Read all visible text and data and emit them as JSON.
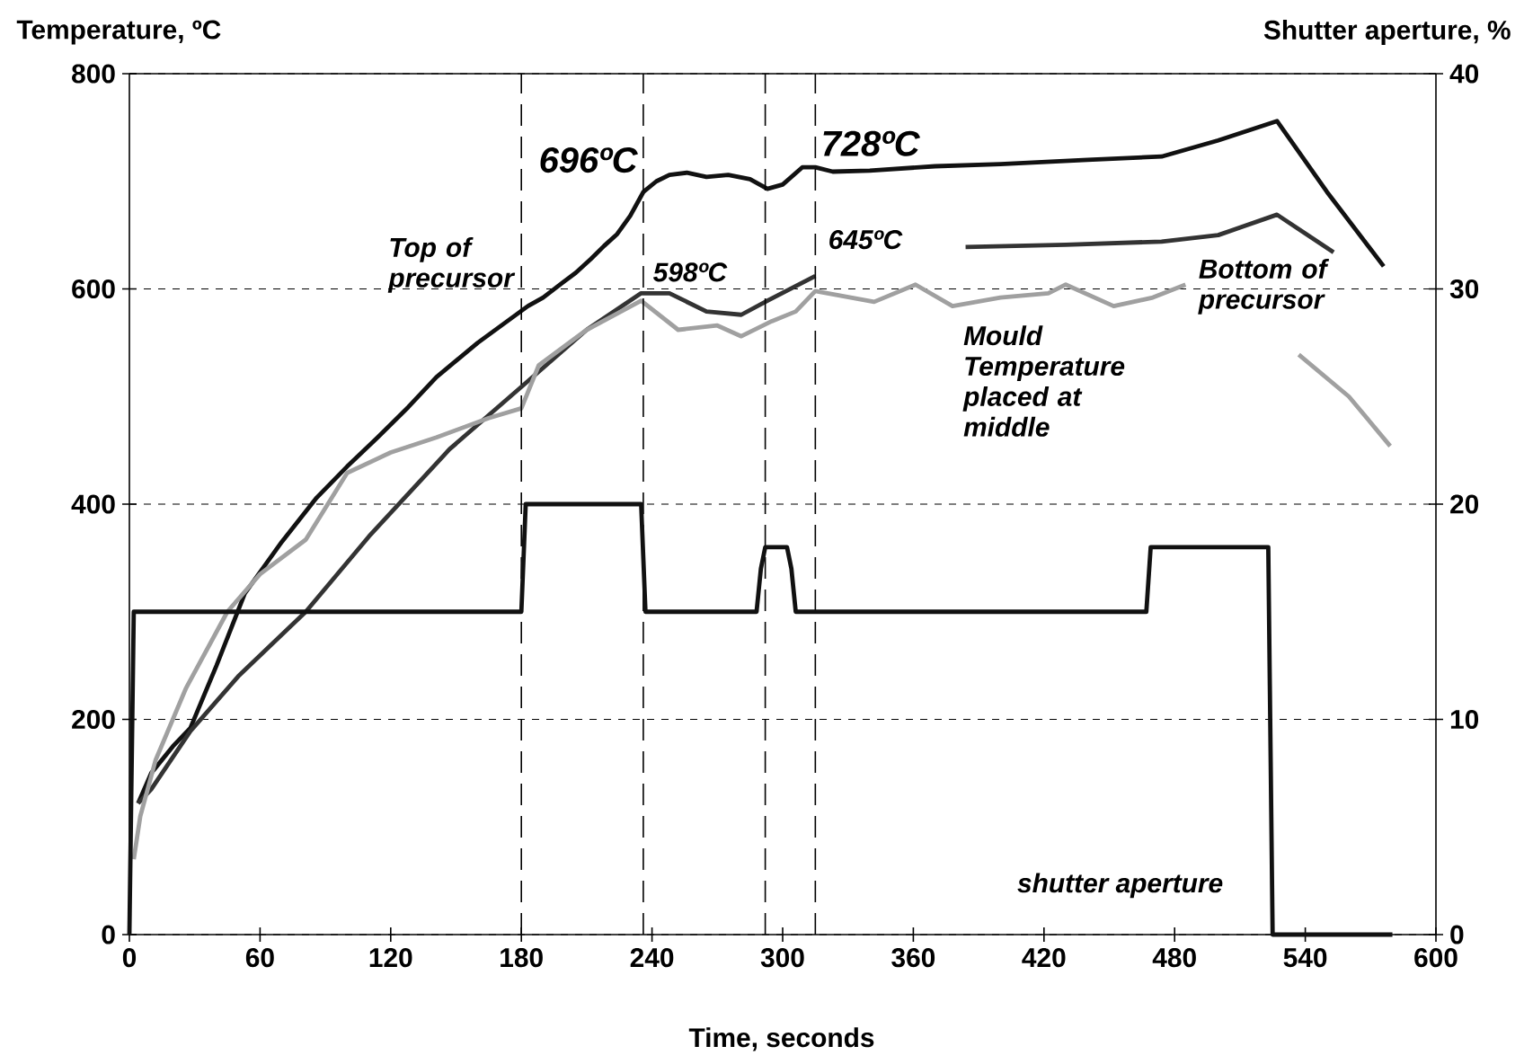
{
  "chart_data": {
    "type": "line",
    "xlabel": "Time, seconds",
    "ylabel": "Temperature, ºC",
    "y2label": "Shutter aperture, %",
    "xlim": [
      0,
      600
    ],
    "xticks": [
      0,
      60,
      120,
      180,
      240,
      300,
      360,
      420,
      480,
      540,
      600
    ],
    "ylim": [
      0,
      800
    ],
    "yticks": [
      0,
      200,
      400,
      600,
      800
    ],
    "y2lim": [
      0,
      40
    ],
    "y2ticks": [
      0,
      10,
      20,
      30,
      40
    ],
    "grid": "y",
    "series": [
      {
        "name": "Top of precursor",
        "color": "#111111",
        "x": [
          4,
          10,
          20,
          28,
          40,
          53,
          70,
          86,
          100,
          114,
          128,
          141,
          160,
          183,
          190,
          199,
          205,
          212,
          218,
          224,
          230,
          236,
          242,
          248,
          256,
          265,
          275,
          285,
          293,
          300,
          309,
          315,
          323,
          340,
          370,
          400,
          440,
          474,
          500,
          527,
          550,
          576
        ],
        "values": [
          122,
          150,
          175,
          192,
          250,
          317,
          365,
          406,
          435,
          462,
          490,
          518,
          550,
          584,
          592,
          606,
          615,
          628,
          640,
          651,
          668,
          690,
          700,
          706,
          708,
          704,
          706,
          702,
          693,
          697,
          713,
          713,
          709,
          710,
          714,
          716,
          720,
          723,
          738,
          756,
          690,
          621
        ]
      },
      {
        "name": "Bottom of precursor",
        "color": "#333333",
        "x": [
          4,
          10,
          28,
          50,
          81,
          110,
          147,
          180,
          210,
          235,
          248,
          265,
          281,
          293,
          315,
          350,
          384,
          430,
          474,
          500,
          527,
          553
        ],
        "values": [
          122,
          135,
          189,
          240,
          300,
          370,
          451,
          509,
          562,
          596,
          596,
          579,
          576,
          589,
          612,
          null,
          639,
          641,
          644,
          650,
          669,
          634
        ]
      },
      {
        "name": "Mould Temperature placed at middle",
        "color": "#a0a0a0",
        "x": [
          2,
          5,
          12,
          26,
          45,
          60,
          81,
          100,
          120,
          141,
          165,
          180,
          188,
          210,
          235,
          252,
          270,
          281,
          295,
          306,
          315,
          342,
          361,
          378,
          400,
          422,
          430,
          452,
          470,
          485,
          510,
          537,
          560,
          579
        ],
        "values": [
          70,
          110,
          162,
          229,
          300,
          335,
          367,
          429,
          448,
          462,
          480,
          489,
          529,
          562,
          589,
          562,
          566,
          556,
          570,
          579,
          598,
          588,
          604,
          584,
          592,
          596,
          604,
          584,
          592,
          604,
          null,
          539,
          500,
          454
        ]
      },
      {
        "name": "shutter aperture",
        "color": "#111111",
        "axis": "y2",
        "x": [
          0,
          2,
          180,
          182,
          235,
          237,
          288,
          290,
          292,
          302,
          304,
          306,
          467,
          469,
          523,
          525,
          580
        ],
        "values": [
          0,
          15,
          15,
          20,
          20,
          15,
          15,
          17,
          18,
          18,
          17,
          15,
          15,
          18,
          18,
          0,
          0
        ]
      }
    ],
    "ref_lines": [
      {
        "axis": "x",
        "value": 180,
        "line_style": "dashed",
        "color": "#000000"
      },
      {
        "axis": "x",
        "value": 236,
        "line_style": "dashed",
        "color": "#000000"
      },
      {
        "axis": "x",
        "value": 292,
        "line_style": "dashed",
        "color": "#000000"
      },
      {
        "axis": "x",
        "value": 315,
        "line_style": "dashed",
        "color": "#000000"
      }
    ],
    "annotations": [
      {
        "text": "696ºC",
        "x": 236,
        "y": 696
      },
      {
        "text": "728ºC",
        "x": 315,
        "y": 728
      },
      {
        "text": "598ºC",
        "x": 237,
        "y": 598
      },
      {
        "text": "645ºC",
        "x": 315,
        "y": 645
      }
    ]
  }
}
